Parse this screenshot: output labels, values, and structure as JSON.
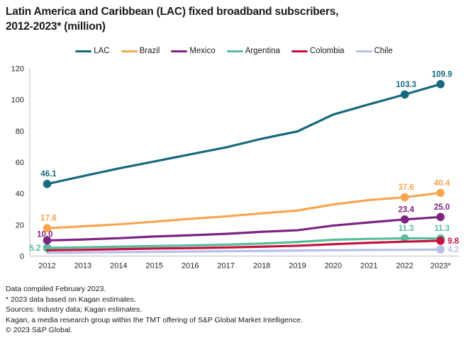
{
  "header": {
    "title_lines": [
      "Latin America and Caribbean (LAC) fixed broadband subscribers,",
      "2012-2023* (million)"
    ]
  },
  "footnotes": [
    "Data compiled February 2023.",
    "* 2023 data based on Kagan estimates.",
    "Sources: Industry data; Kagan estimates.",
    "Kagan, a media research group within the TMT offering of S&P Global Market Intelligence.",
    "© 2023 S&P Global."
  ],
  "colors": {
    "axis": "#c9c9c9",
    "text": "#1a1a1a"
  },
  "chart_data": {
    "type": "line",
    "title": "Latin America and Caribbean (LAC) fixed broadband subscribers, 2012-2023* (million)",
    "xlabel": "",
    "ylabel": "",
    "x": [
      "2012",
      "2013",
      "2014",
      "2015",
      "2016",
      "2017",
      "2018",
      "2019",
      "2020",
      "2021",
      "2022",
      "2023*"
    ],
    "ylim": [
      0,
      120
    ],
    "yticks": [
      0,
      20,
      40,
      60,
      80,
      100,
      120
    ],
    "grid": false,
    "legend_position": "top",
    "series": [
      {
        "name": "LAC",
        "color": "#16697e",
        "z": 6,
        "values": [
          46.1,
          51.1,
          56.0,
          60.5,
          65.0,
          69.5,
          75.0,
          79.7,
          90.5,
          97.0,
          103.3,
          109.9
        ],
        "labels": [
          {
            "index": 0,
            "text": "46.1",
            "placement": "above"
          },
          {
            "index": 10,
            "text": "103.3",
            "placement": "above"
          },
          {
            "index": 11,
            "text": "109.9",
            "placement": "above"
          }
        ]
      },
      {
        "name": "Brazil",
        "color": "#f8a550",
        "z": 5,
        "values": [
          17.8,
          19.0,
          20.3,
          22.0,
          23.8,
          25.4,
          27.3,
          29.1,
          33.0,
          35.8,
          37.6,
          40.4
        ],
        "labels": [
          {
            "index": 0,
            "text": "17.8",
            "placement": "above"
          },
          {
            "index": 10,
            "text": "37.6",
            "placement": "above"
          },
          {
            "index": 11,
            "text": "40.4",
            "placement": "above"
          }
        ]
      },
      {
        "name": "Mexico",
        "color": "#7d2480",
        "z": 4,
        "values": [
          10.0,
          10.6,
          11.4,
          12.5,
          13.3,
          14.2,
          15.5,
          16.5,
          19.5,
          21.5,
          23.4,
          25.0
        ],
        "labels": [
          {
            "index": 0,
            "text": "10.0",
            "placement": "left-above"
          },
          {
            "index": 10,
            "text": "23.4",
            "placement": "above"
          },
          {
            "index": 11,
            "text": "25.0",
            "placement": "above"
          }
        ]
      },
      {
        "name": "Argentina",
        "color": "#55bd9b",
        "z": 2,
        "values": [
          5.2,
          5.6,
          6.0,
          6.4,
          6.8,
          7.3,
          8.0,
          9.0,
          10.4,
          11.0,
          11.3,
          11.3
        ],
        "labels": [
          {
            "index": 0,
            "text": "5.2",
            "placement": "left"
          },
          {
            "index": 10,
            "text": "11.3",
            "placement": "above"
          },
          {
            "index": 11,
            "text": "11.3",
            "placement": "above"
          }
        ]
      },
      {
        "name": "Colombia",
        "color": "#c51240",
        "z": 3,
        "values": [
          3.7,
          4.0,
          4.4,
          4.8,
          5.1,
          5.5,
          6.0,
          6.6,
          7.6,
          8.5,
          9.2,
          9.8
        ],
        "labels": [
          {
            "index": 11,
            "text": "9.8",
            "placement": "right"
          }
        ]
      },
      {
        "name": "Chile",
        "color": "#b7c0e7",
        "z": 1,
        "values": [
          2.1,
          2.3,
          2.5,
          2.7,
          2.9,
          3.1,
          3.3,
          3.5,
          3.7,
          3.9,
          4.0,
          4.2
        ],
        "labels": [
          {
            "index": 11,
            "text": "4.2",
            "placement": "right"
          }
        ]
      }
    ]
  }
}
